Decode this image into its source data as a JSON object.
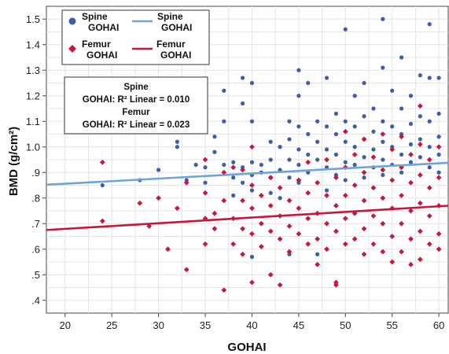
{
  "chart_data": {
    "type": "scatter",
    "xlabel": "GOHAI",
    "ylabel": "BMD (g/cm²)",
    "xlim": [
      18,
      61
    ],
    "ylim": [
      0.35,
      1.55
    ],
    "xticks": [
      "20",
      "25",
      "30",
      "35",
      "40",
      "45",
      "50",
      "55",
      "60"
    ],
    "yticks": [
      ".4",
      ".5",
      ".6",
      ".7",
      ".8",
      ".9",
      "1.0",
      "1.1",
      "1.2",
      "1.3",
      "1.4",
      "1.5"
    ],
    "grid": true,
    "legend_position": "top-left",
    "legend": [
      {
        "name": "Spine",
        "sub": "GOHAI",
        "kind": "marker",
        "series": "spine"
      },
      {
        "name": "Spine",
        "sub": "GOHAI",
        "kind": "line",
        "series": "spine"
      },
      {
        "name": "Femur",
        "sub": "GOHAI",
        "kind": "marker",
        "series": "femur"
      },
      {
        "name": "Femur",
        "sub": "GOHAI",
        "kind": "line",
        "series": "femur"
      }
    ],
    "r2_box": {
      "spine_title": "Spine",
      "spine_text": "GOHAI: R² Linear = 0.010",
      "femur_title": "Femur",
      "femur_text": "GOHAI: R² Linear = 0.023"
    },
    "series": [
      {
        "id": "spine",
        "name": "Spine",
        "marker": "circle",
        "color": "#3d5fa8",
        "line_color": "#6fa3d9",
        "fit": {
          "y_at_xmin": 0.852,
          "y_at_xmax": 0.938
        },
        "points": [
          [
            24,
            0.85
          ],
          [
            28,
            0.87
          ],
          [
            30,
            0.91
          ],
          [
            32,
            1.0
          ],
          [
            32,
            1.02
          ],
          [
            33,
            0.87
          ],
          [
            34,
            0.93
          ],
          [
            35,
            0.92
          ],
          [
            35,
            0.86
          ],
          [
            36,
            1.04
          ],
          [
            36,
            0.98
          ],
          [
            37,
            1.1
          ],
          [
            37,
            1.22
          ],
          [
            37,
            0.93
          ],
          [
            38,
            0.94
          ],
          [
            38,
            0.88
          ],
          [
            38,
            0.81
          ],
          [
            39,
            1.27
          ],
          [
            39,
            1.17
          ],
          [
            39,
            0.92
          ],
          [
            39,
            0.86
          ],
          [
            40,
            1.25
          ],
          [
            40,
            1.1
          ],
          [
            40,
            0.94
          ],
          [
            40,
            0.89
          ],
          [
            40,
            0.83
          ],
          [
            40,
            0.57
          ],
          [
            41,
            0.9
          ],
          [
            41,
            0.93
          ],
          [
            42,
            1.02
          ],
          [
            42,
            0.95
          ],
          [
            42,
            0.88
          ],
          [
            42,
            0.82
          ],
          [
            43,
            1.0
          ],
          [
            43,
            0.91
          ],
          [
            43,
            0.8
          ],
          [
            44,
            1.1
          ],
          [
            44,
            1.03
          ],
          [
            44,
            0.95
          ],
          [
            44,
            0.88
          ],
          [
            44,
            0.58
          ],
          [
            45,
            1.3
          ],
          [
            45,
            1.2
          ],
          [
            45,
            1.08
          ],
          [
            45,
            0.99
          ],
          [
            45,
            0.93
          ],
          [
            45,
            0.86
          ],
          [
            46,
            1.25
          ],
          [
            46,
            1.05
          ],
          [
            46,
            0.97
          ],
          [
            46,
            0.9
          ],
          [
            47,
            1.1
          ],
          [
            47,
            1.02
          ],
          [
            47,
            0.95
          ],
          [
            47,
            0.58
          ],
          [
            48,
            1.27
          ],
          [
            48,
            1.08
          ],
          [
            48,
            0.99
          ],
          [
            48,
            0.92
          ],
          [
            48,
            0.83
          ],
          [
            49,
            1.13
          ],
          [
            49,
            1.05
          ],
          [
            49,
            0.97
          ],
          [
            49,
            0.89
          ],
          [
            50,
            1.46
          ],
          [
            50,
            1.1
          ],
          [
            50,
            1.02
          ],
          [
            50,
            0.94
          ],
          [
            50,
            0.87
          ],
          [
            51,
            1.2
          ],
          [
            51,
            1.08
          ],
          [
            51,
            1.0
          ],
          [
            51,
            0.93
          ],
          [
            52,
            1.25
          ],
          [
            52,
            1.12
          ],
          [
            52,
            1.03
          ],
          [
            52,
            0.96
          ],
          [
            52,
            0.88
          ],
          [
            53,
            1.15
          ],
          [
            53,
            1.06
          ],
          [
            53,
            0.99
          ],
          [
            53,
            0.92
          ],
          [
            54,
            1.5
          ],
          [
            54,
            1.31
          ],
          [
            54,
            1.1
          ],
          [
            54,
            1.02
          ],
          [
            54,
            0.95
          ],
          [
            54,
            0.89
          ],
          [
            55,
            1.22
          ],
          [
            55,
            1.08
          ],
          [
            55,
            1.0
          ],
          [
            55,
            0.93
          ],
          [
            56,
            1.35
          ],
          [
            56,
            1.15
          ],
          [
            56,
            1.05
          ],
          [
            56,
            0.97
          ],
          [
            56,
            0.9
          ],
          [
            57,
            1.2
          ],
          [
            57,
            1.09
          ],
          [
            57,
            1.01
          ],
          [
            57,
            0.94
          ],
          [
            58,
            1.28
          ],
          [
            58,
            1.12
          ],
          [
            58,
            1.03
          ],
          [
            58,
            0.96
          ],
          [
            59,
            1.48
          ],
          [
            59,
            1.27
          ],
          [
            59,
            1.1
          ],
          [
            59,
            1.0
          ],
          [
            59,
            0.92
          ],
          [
            60,
            1.27
          ],
          [
            60,
            1.13
          ],
          [
            60,
            1.04
          ],
          [
            60,
            0.97
          ],
          [
            60,
            0.9
          ]
        ]
      },
      {
        "id": "femur",
        "name": "Femur",
        "marker": "diamond",
        "color": "#c8163d",
        "line_color": "#c8163d",
        "fit": {
          "y_at_xmin": 0.675,
          "y_at_xmax": 0.77
        },
        "points": [
          [
            24,
            0.94
          ],
          [
            24,
            0.71
          ],
          [
            28,
            0.78
          ],
          [
            29,
            0.69
          ],
          [
            30,
            0.8
          ],
          [
            31,
            0.6
          ],
          [
            32,
            0.76
          ],
          [
            33,
            0.86
          ],
          [
            33,
            0.52
          ],
          [
            35,
            0.95
          ],
          [
            35,
            0.82
          ],
          [
            35,
            0.72
          ],
          [
            35,
            0.62
          ],
          [
            36,
            0.74
          ],
          [
            36,
            0.68
          ],
          [
            37,
            0.9
          ],
          [
            37,
            0.79
          ],
          [
            37,
            0.44
          ],
          [
            38,
            0.92
          ],
          [
            38,
            0.72
          ],
          [
            38,
            0.62
          ],
          [
            39,
            0.91
          ],
          [
            39,
            0.79
          ],
          [
            39,
            0.68
          ],
          [
            39,
            0.58
          ],
          [
            40,
            1.0
          ],
          [
            40,
            0.85
          ],
          [
            40,
            0.76
          ],
          [
            40,
            0.66
          ],
          [
            40,
            0.47
          ],
          [
            41,
            0.81
          ],
          [
            41,
            0.7
          ],
          [
            41,
            0.61
          ],
          [
            42,
            0.88
          ],
          [
            42,
            0.77
          ],
          [
            42,
            0.67
          ],
          [
            42,
            0.5
          ],
          [
            43,
            0.84
          ],
          [
            43,
            0.73
          ],
          [
            43,
            0.64
          ],
          [
            43,
            0.46
          ],
          [
            44,
            0.79
          ],
          [
            44,
            0.69
          ],
          [
            44,
            0.59
          ],
          [
            45,
            0.87
          ],
          [
            45,
            0.76
          ],
          [
            45,
            0.66
          ],
          [
            46,
            0.94
          ],
          [
            46,
            0.82
          ],
          [
            46,
            0.72
          ],
          [
            46,
            0.62
          ],
          [
            47,
            0.86
          ],
          [
            47,
            0.74
          ],
          [
            47,
            0.64
          ],
          [
            47,
            0.54
          ],
          [
            48,
            0.95
          ],
          [
            48,
            0.81
          ],
          [
            48,
            0.7
          ],
          [
            48,
            0.6
          ],
          [
            49,
            0.88
          ],
          [
            49,
            0.77
          ],
          [
            49,
            0.67
          ],
          [
            49,
            0.47
          ],
          [
            49,
            0.46
          ],
          [
            50,
            1.06
          ],
          [
            50,
            0.92
          ],
          [
            50,
            0.81
          ],
          [
            50,
            0.72
          ],
          [
            50,
            0.62
          ],
          [
            51,
            0.97
          ],
          [
            51,
            0.85
          ],
          [
            51,
            0.74
          ],
          [
            51,
            0.64
          ],
          [
            52,
            1.03
          ],
          [
            52,
            0.9
          ],
          [
            52,
            0.79
          ],
          [
            52,
            0.68
          ],
          [
            52,
            0.58
          ],
          [
            53,
            0.96
          ],
          [
            53,
            0.84
          ],
          [
            53,
            0.73
          ],
          [
            53,
            0.62
          ],
          [
            54,
            1.05
          ],
          [
            54,
            0.91
          ],
          [
            54,
            0.8
          ],
          [
            54,
            0.7
          ],
          [
            54,
            0.59
          ],
          [
            55,
            0.99
          ],
          [
            55,
            0.87
          ],
          [
            55,
            0.76
          ],
          [
            55,
            0.65
          ],
          [
            55,
            0.55
          ],
          [
            56,
            1.04
          ],
          [
            56,
            0.92
          ],
          [
            56,
            0.81
          ],
          [
            56,
            0.7
          ],
          [
            56,
            0.59
          ],
          [
            57,
            0.97
          ],
          [
            57,
            0.86
          ],
          [
            57,
            0.75
          ],
          [
            57,
            0.64
          ],
          [
            57,
            0.54
          ],
          [
            58,
            1.16
          ],
          [
            58,
            1.01
          ],
          [
            58,
            0.89
          ],
          [
            58,
            0.78
          ],
          [
            58,
            0.67
          ],
          [
            58,
            0.56
          ],
          [
            59,
            0.95
          ],
          [
            59,
            0.84
          ],
          [
            59,
            0.73
          ],
          [
            59,
            0.62
          ],
          [
            60,
            1.0
          ],
          [
            60,
            0.88
          ],
          [
            60,
            0.77
          ],
          [
            60,
            0.66
          ],
          [
            60,
            0.6
          ]
        ]
      }
    ]
  }
}
